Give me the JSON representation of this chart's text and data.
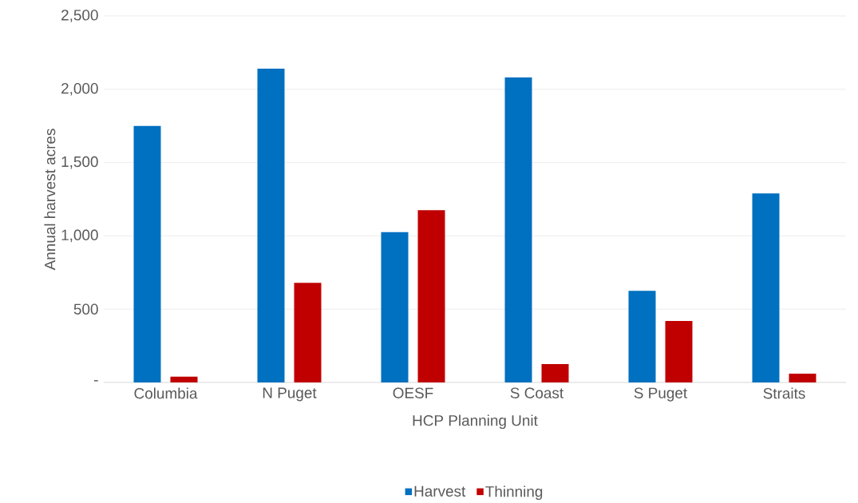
{
  "chart_data": {
    "type": "bar",
    "xlabel": "HCP Planning Unit",
    "ylabel": "Annual harvest acres",
    "categories": [
      "Columbia",
      "N Puget",
      "OESF",
      "S Coast",
      "S Puget",
      "Straits"
    ],
    "series": [
      {
        "name": "Harvest",
        "color": "#0070c0",
        "values": [
          1750,
          2140,
          1025,
          2080,
          625,
          1290
        ]
      },
      {
        "name": "Thinning",
        "color": "#c00000",
        "values": [
          40,
          680,
          1175,
          125,
          420,
          60
        ]
      }
    ],
    "ylim": [
      0,
      2500
    ],
    "yticks": [
      {
        "value": 0,
        "label": "-"
      },
      {
        "value": 500,
        "label": "500"
      },
      {
        "value": 1000,
        "label": "1,000"
      },
      {
        "value": 1500,
        "label": "1,500"
      },
      {
        "value": 2000,
        "label": "2,000"
      },
      {
        "value": 2500,
        "label": "2,500"
      }
    ],
    "grid": "y",
    "legend": "bottom"
  }
}
